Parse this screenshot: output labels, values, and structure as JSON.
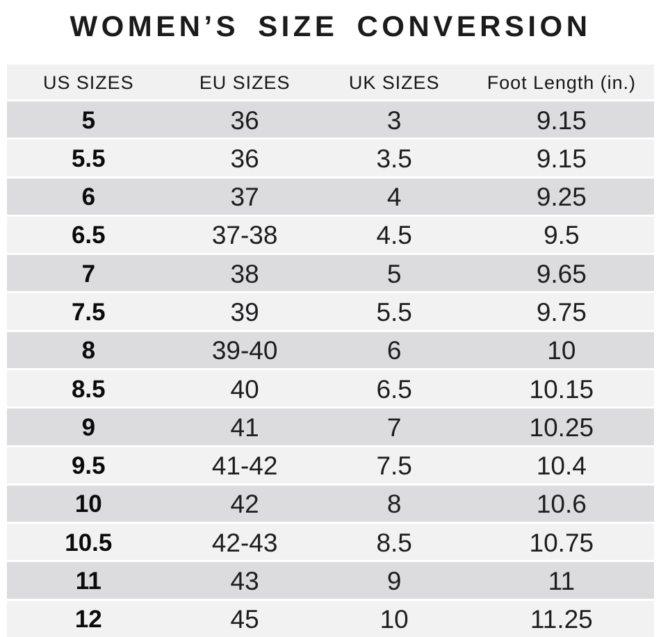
{
  "page": {
    "title": "WOMEN’S SIZE CONVERSION"
  },
  "chart_data": {
    "type": "table",
    "title": "WOMEN’S SIZE CONVERSION",
    "columns": [
      "US SIZES",
      "EU SIZES",
      "UK SIZES",
      "Foot Length (in.)"
    ],
    "rows": [
      [
        "5",
        "36",
        "3",
        "9.15"
      ],
      [
        "5.5",
        "36",
        "3.5",
        "9.15"
      ],
      [
        "6",
        "37",
        "4",
        "9.25"
      ],
      [
        "6.5",
        "37-38",
        "4.5",
        "9.5"
      ],
      [
        "7",
        "38",
        "5",
        "9.65"
      ],
      [
        "7.5",
        "39",
        "5.5",
        "9.75"
      ],
      [
        "8",
        "39-40",
        "6",
        "10"
      ],
      [
        "8.5",
        "40",
        "6.5",
        "10.15"
      ],
      [
        "9",
        "41",
        "7",
        "10.25"
      ],
      [
        "9.5",
        "41-42",
        "7.5",
        "10.4"
      ],
      [
        "10",
        "42",
        "8",
        "10.6"
      ],
      [
        "10.5",
        "42-43",
        "8.5",
        "10.75"
      ],
      [
        "11",
        "43",
        "9",
        "11"
      ],
      [
        "12",
        "45",
        "10",
        "11.25"
      ]
    ],
    "layout": {
      "striping": "first-row-dark-alternating",
      "alignment": "center",
      "us_sizes_column_bold": true
    }
  },
  "colors": {
    "background": "#ffffff",
    "header_row_bg": "#f1f1f1",
    "row_odd_bg": "#dcdcde",
    "row_even_bg": "#f2f2f3",
    "row_gap": "#ffffff",
    "title_text": "#1b1b1b",
    "cell_text": "#1d1d1f"
  }
}
